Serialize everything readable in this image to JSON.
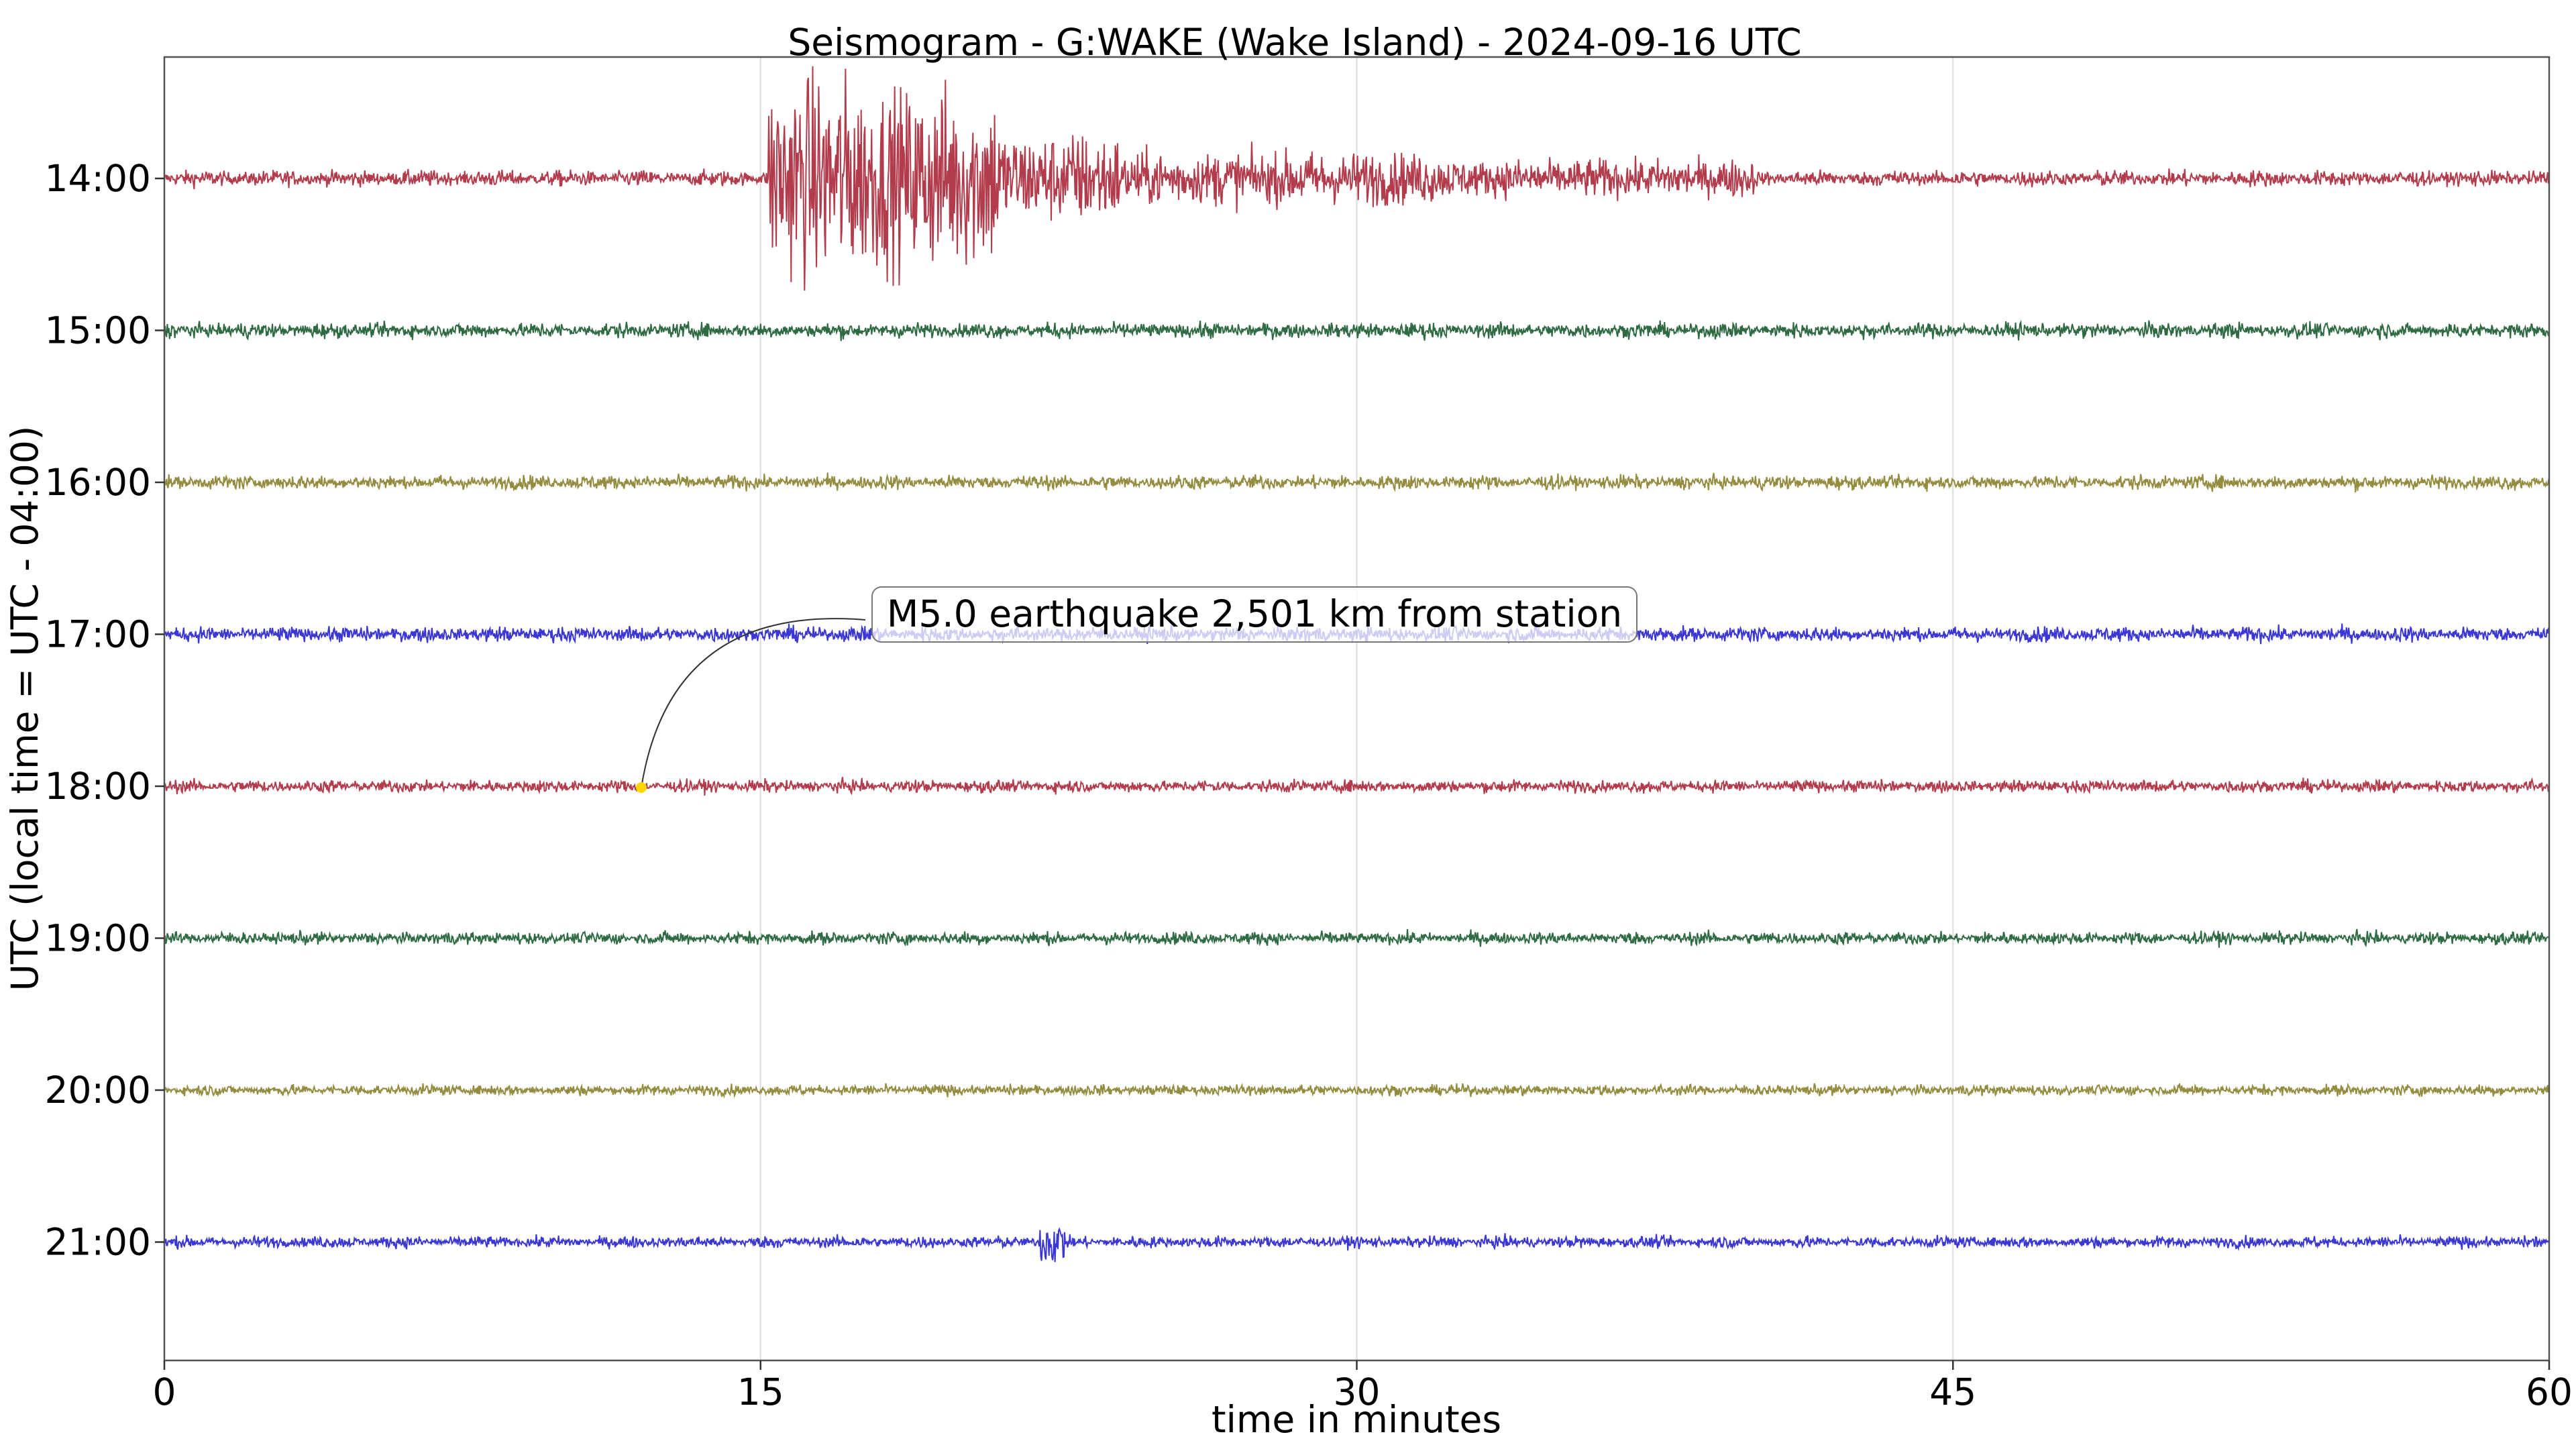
{
  "chart_data": {
    "type": "line",
    "title": "Seismogram - G:WAKE (Wake Island) - 2024-09-16 UTC",
    "xlabel": "time in minutes",
    "ylabel": "UTC (local time = UTC - 04:00)",
    "xlim": [
      0,
      60
    ],
    "xticks": [
      0,
      15,
      30,
      45,
      60
    ],
    "xtick_labels": [
      "0",
      "15",
      "30",
      "45",
      "60"
    ],
    "grid": "vertical lines at x ticks",
    "rows": [
      {
        "label": "14:00",
        "color": "#b33c4c",
        "noise": 0.18,
        "bursts": [
          {
            "start": 15.2,
            "end": 17.5,
            "amp": 2.5
          },
          {
            "start": 17.5,
            "end": 21.0,
            "amp": 2.2
          },
          {
            "start": 21.0,
            "end": 24.0,
            "amp": 1.0
          },
          {
            "start": 24.0,
            "end": 32.0,
            "amp": 0.5
          },
          {
            "start": 32.0,
            "end": 40.0,
            "amp": 0.3
          }
        ]
      },
      {
        "label": "15:00",
        "color": "#2f6b42",
        "noise": 0.17,
        "bursts": []
      },
      {
        "label": "16:00",
        "color": "#948c3e",
        "noise": 0.16,
        "bursts": []
      },
      {
        "label": "17:00",
        "color": "#3a37d4",
        "noise": 0.17,
        "bursts": []
      },
      {
        "label": "18:00",
        "color": "#b33c4c",
        "noise": 0.14,
        "bursts": []
      },
      {
        "label": "19:00",
        "color": "#2f6b42",
        "noise": 0.14,
        "bursts": []
      },
      {
        "label": "20:00",
        "color": "#948c3e",
        "noise": 0.12,
        "bursts": []
      },
      {
        "label": "21:00",
        "color": "#3a37d4",
        "noise": 0.13,
        "bursts": [
          {
            "start": 22.0,
            "end": 22.7,
            "amp": 0.45
          }
        ]
      }
    ],
    "annotation": {
      "text": "M5.0 earthquake 2,501 km from station",
      "row": "18:00",
      "minute": 12.0,
      "marker_color": "#ffd700"
    }
  }
}
